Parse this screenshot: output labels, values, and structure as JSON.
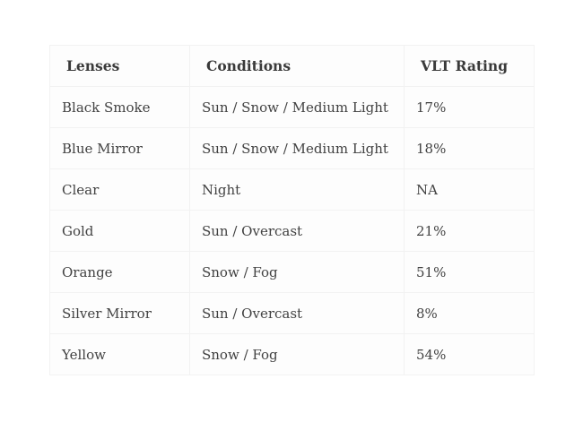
{
  "chart_data": {
    "type": "table",
    "title": "",
    "columns": [
      "Lenses",
      "Conditions",
      "VLT Rating"
    ],
    "rows": [
      [
        "Black Smoke",
        "Sun / Snow / Medium Light",
        "17%"
      ],
      [
        "Blue Mirror",
        "Sun / Snow / Medium Light",
        "18%"
      ],
      [
        "Clear",
        "Night",
        "NA"
      ],
      [
        "Gold",
        "Sun / Overcast",
        "21%"
      ],
      [
        "Orange",
        "Snow / Fog",
        "51%"
      ],
      [
        "Silver Mirror",
        "Sun / Overcast",
        "8%"
      ],
      [
        "Yellow",
        "Snow / Fog",
        "54%"
      ]
    ]
  },
  "table": {
    "columns": [
      "Lenses",
      "Conditions",
      "VLT Rating"
    ],
    "rows": [
      [
        "Black Smoke",
        "Sun / Snow / Medium Light",
        "17%"
      ],
      [
        "Blue Mirror",
        "Sun / Snow / Medium Light",
        "18%"
      ],
      [
        "Clear",
        "Night",
        "NA"
      ],
      [
        "Gold",
        "Sun / Overcast",
        "21%"
      ],
      [
        "Orange",
        "Snow / Fog",
        "51%"
      ],
      [
        "Silver Mirror",
        "Sun / Overcast",
        "8%"
      ],
      [
        "Yellow",
        "Snow / Fog",
        "54%"
      ]
    ],
    "colors": {
      "border": "#f2f2f2",
      "header_text": "#3a3a3a",
      "body_text": "#424242",
      "cell_background": "#fdfdfd",
      "page_background": "#ffffff"
    }
  }
}
